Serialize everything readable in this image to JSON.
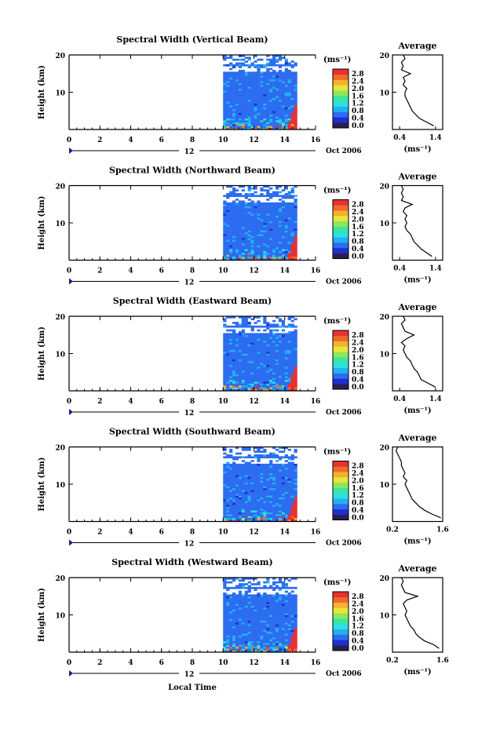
{
  "chart_data": [
    {
      "type": "heatmap",
      "title": "Spectral Width (Vertical Beam)",
      "ylabel": "Height (km)",
      "xticks": [
        "0",
        "2",
        "4",
        "6",
        "8",
        "10",
        "12",
        "14",
        "16"
      ],
      "yticks": [
        "10",
        "20"
      ],
      "xlim": [
        0,
        16
      ],
      "ylim": [
        0,
        20
      ],
      "date_day": "12",
      "date_label": "Oct 2006",
      "colorbar_unit": "(ms⁻¹)",
      "colorbar_ticks": [
        "2.8",
        "2.4",
        "2.0",
        "1.6",
        "1.2",
        "0.8",
        "0.4",
        "0.0"
      ],
      "avg": {
        "title": "Average",
        "xticks": [
          "0.4",
          "1.4"
        ],
        "xlim": [
          0.2,
          1.6
        ],
        "yticks": [
          "10",
          "20"
        ],
        "xlabel": "(ms⁻¹)",
        "height": [
          1,
          2,
          3,
          4,
          5,
          6,
          7,
          8,
          9,
          10,
          11,
          12,
          13,
          14,
          15,
          16,
          17,
          18,
          19,
          20
        ],
        "value": [
          1.35,
          1.15,
          0.95,
          0.85,
          0.75,
          0.7,
          0.65,
          0.6,
          0.55,
          0.55,
          0.6,
          0.5,
          0.55,
          0.5,
          0.7,
          0.45,
          0.5,
          0.45,
          0.55,
          0.5
        ]
      }
    },
    {
      "type": "heatmap",
      "title": "Spectral Width (Northward Beam)",
      "ylabel": "Height (km)",
      "xticks": [
        "0",
        "2",
        "4",
        "6",
        "8",
        "10",
        "12",
        "14",
        "16"
      ],
      "yticks": [
        "10",
        "20"
      ],
      "xlim": [
        0,
        16
      ],
      "ylim": [
        0,
        20
      ],
      "date_day": "12",
      "date_label": "Oct 2006",
      "colorbar_unit": "(ms⁻¹)",
      "colorbar_ticks": [
        "2.8",
        "2.4",
        "2.0",
        "1.6",
        "1.2",
        "0.8",
        "0.4",
        "0.0"
      ],
      "avg": {
        "title": "Average",
        "xticks": [
          "0.4",
          "1.4"
        ],
        "xlim": [
          0.2,
          1.6
        ],
        "yticks": [
          "10",
          "20"
        ],
        "xlabel": "(ms⁻¹)",
        "height": [
          1,
          2,
          3,
          4,
          5,
          6,
          7,
          8,
          9,
          10,
          11,
          12,
          13,
          14,
          15,
          16,
          17,
          18,
          19,
          20
        ],
        "value": [
          1.3,
          1.15,
          1.0,
          0.9,
          0.8,
          0.75,
          0.7,
          0.6,
          0.55,
          0.6,
          0.55,
          0.6,
          0.5,
          0.55,
          0.75,
          0.45,
          0.5,
          0.45,
          0.5,
          0.45
        ]
      }
    },
    {
      "type": "heatmap",
      "title": "Spectral Width (Eastward Beam)",
      "ylabel": "Height (km)",
      "xticks": [
        "0",
        "2",
        "4",
        "6",
        "8",
        "10",
        "12",
        "14",
        "16"
      ],
      "yticks": [
        "10",
        "20"
      ],
      "xlim": [
        0,
        16
      ],
      "ylim": [
        0,
        20
      ],
      "date_day": "12",
      "date_label": "Oct 2006",
      "colorbar_unit": "(ms⁻¹)",
      "colorbar_ticks": [
        "2.8",
        "2.4",
        "2.0",
        "1.6",
        "1.2",
        "0.8",
        "0.4",
        "0.0"
      ],
      "avg": {
        "title": "Average",
        "xticks": [
          "0.4",
          "1.4"
        ],
        "xlim": [
          0.2,
          1.6
        ],
        "yticks": [
          "10",
          "20"
        ],
        "xlabel": "(ms⁻¹)",
        "height": [
          1,
          2,
          3,
          4,
          5,
          6,
          7,
          8,
          9,
          10,
          11,
          12,
          13,
          14,
          15,
          16,
          17,
          18,
          19,
          20
        ],
        "value": [
          1.4,
          1.2,
          1.0,
          0.95,
          0.9,
          0.8,
          0.75,
          0.7,
          0.6,
          0.55,
          0.5,
          0.55,
          0.45,
          0.6,
          0.8,
          0.55,
          0.5,
          0.45,
          0.55,
          0.5
        ]
      }
    },
    {
      "type": "heatmap",
      "title": "Spectral Width (Southward Beam)",
      "ylabel": "Height (km)",
      "xticks": [
        "0",
        "2",
        "4",
        "6",
        "8",
        "10",
        "12",
        "14",
        "16"
      ],
      "yticks": [
        "10",
        "20"
      ],
      "xlim": [
        0,
        16
      ],
      "ylim": [
        0,
        20
      ],
      "date_day": "12",
      "date_label": "Oct 2006",
      "colorbar_unit": "(ms⁻¹)",
      "colorbar_ticks": [
        "2.8",
        "2.4",
        "2.0",
        "1.6",
        "1.2",
        "0.8",
        "0.4",
        "0.0"
      ],
      "avg": {
        "title": "Average",
        "xticks": [
          "0.2",
          "1.6"
        ],
        "xlim": [
          0.2,
          1.6
        ],
        "yticks": [
          "10",
          "20"
        ],
        "xlabel": "(ms⁻¹)",
        "height": [
          1,
          2,
          3,
          4,
          5,
          6,
          7,
          8,
          9,
          10,
          11,
          12,
          13,
          14,
          15,
          16,
          17,
          18,
          19,
          20
        ],
        "value": [
          1.55,
          1.3,
          1.1,
          0.95,
          0.85,
          0.75,
          0.7,
          0.65,
          0.6,
          0.55,
          0.6,
          0.5,
          0.55,
          0.5,
          0.45,
          0.45,
          0.4,
          0.35,
          0.3,
          0.35
        ]
      }
    },
    {
      "type": "heatmap",
      "title": "Spectral Width (Westward Beam)",
      "ylabel": "Height (km)",
      "xticks": [
        "0",
        "2",
        "4",
        "6",
        "8",
        "10",
        "12",
        "14",
        "16"
      ],
      "yticks": [
        "10",
        "20"
      ],
      "xlim": [
        0,
        16
      ],
      "ylim": [
        0,
        20
      ],
      "date_day": "12",
      "date_label": "Oct 2006",
      "colorbar_unit": "(ms⁻¹)",
      "colorbar_ticks": [
        "2.8",
        "2.4",
        "2.0",
        "1.6",
        "1.2",
        "0.8",
        "0.4",
        "0.0"
      ],
      "avg": {
        "title": "Average",
        "xticks": [
          "0.2",
          "1.6"
        ],
        "xlim": [
          0.2,
          1.6
        ],
        "yticks": [
          "10",
          "20"
        ],
        "xlabel": "(ms⁻¹)",
        "height": [
          1,
          2,
          3,
          4,
          5,
          6,
          7,
          8,
          9,
          10,
          11,
          12,
          13,
          14,
          15,
          16,
          17,
          18,
          19,
          20
        ],
        "value": [
          1.5,
          1.35,
          1.1,
          0.95,
          0.85,
          0.8,
          0.7,
          0.65,
          0.6,
          0.55,
          0.6,
          0.55,
          0.5,
          0.6,
          0.9,
          0.55,
          0.5,
          0.45,
          0.5,
          0.45
        ]
      }
    }
  ],
  "footer": {
    "xlabel": "Local Time"
  },
  "colors": {
    "cmap": [
      "#2b1f4f",
      "#1f2fd0",
      "#2c6cf0",
      "#23b0f0",
      "#2de0e0",
      "#3ae6a0",
      "#8ee65a",
      "#e6e63a",
      "#f5b030",
      "#f06a2a",
      "#e83030"
    ]
  }
}
